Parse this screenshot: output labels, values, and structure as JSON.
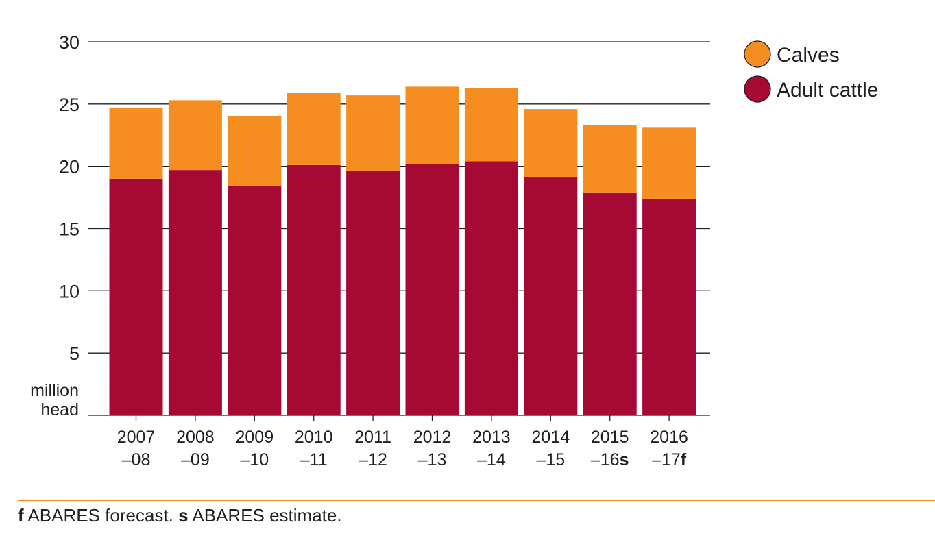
{
  "chart_data": {
    "type": "bar",
    "stacked": true,
    "categories": [
      {
        "line1": "2007",
        "line2": "–08",
        "marker": ""
      },
      {
        "line1": "2008",
        "line2": "–09",
        "marker": ""
      },
      {
        "line1": "2009",
        "line2": "–10",
        "marker": ""
      },
      {
        "line1": "2010",
        "line2": "–11",
        "marker": ""
      },
      {
        "line1": "2011",
        "line2": "–12",
        "marker": ""
      },
      {
        "line1": "2012",
        "line2": "–13",
        "marker": ""
      },
      {
        "line1": "2013",
        "line2": "–14",
        "marker": ""
      },
      {
        "line1": "2014",
        "line2": "–15",
        "marker": ""
      },
      {
        "line1": "2015",
        "line2": "–16",
        "marker": "s"
      },
      {
        "line1": "2016",
        "line2": "–17",
        "marker": "f"
      }
    ],
    "series": [
      {
        "name": "Adult cattle",
        "color": "#a50934",
        "values": [
          19.0,
          19.7,
          18.4,
          20.1,
          19.6,
          20.2,
          20.4,
          19.1,
          17.9,
          17.4
        ]
      },
      {
        "name": "Calves",
        "color": "#f68d20",
        "values": [
          5.7,
          5.6,
          5.6,
          5.8,
          6.1,
          6.2,
          5.9,
          5.5,
          5.4,
          5.7
        ]
      }
    ],
    "legend_order": [
      "Calves",
      "Adult cattle"
    ],
    "legend_position": "top-right",
    "ylabel": [
      "million",
      "head"
    ],
    "ylim": [
      0,
      30
    ],
    "yticks": [
      5,
      10,
      15,
      20,
      25,
      30
    ],
    "grid": true
  },
  "footnote": {
    "f_marker": "f",
    "f_text": " ABARES forecast. ",
    "s_marker": "s",
    "s_text": " ABARES estimate."
  },
  "colors": {
    "gridline": "#231f20",
    "footnote_rule": "#f68d20"
  }
}
